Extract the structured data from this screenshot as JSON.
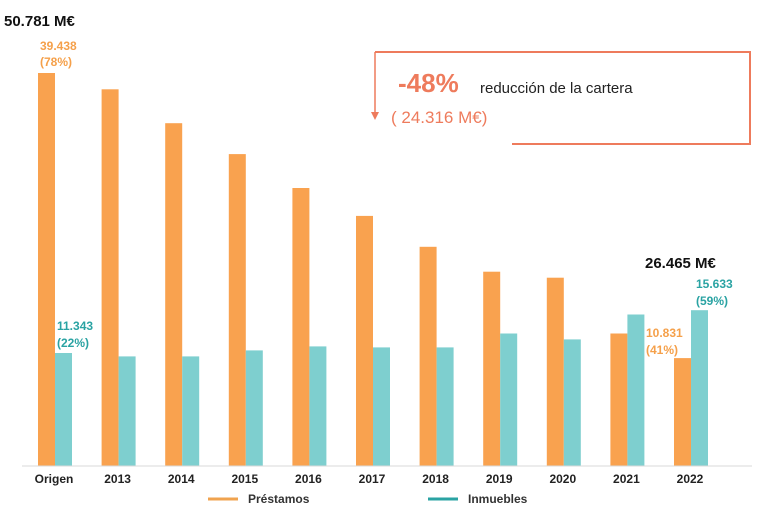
{
  "chart_data": {
    "type": "bar",
    "categories": [
      "Origen",
      "2013",
      "2014",
      "2015",
      "2016",
      "2017",
      "2018",
      "2019",
      "2020",
      "2021",
      "2022"
    ],
    "series": [
      {
        "name": "Préstamos",
        "color": "#f9a24f",
        "values": [
          39438,
          37800,
          34400,
          31300,
          27900,
          25100,
          22000,
          19500,
          18900,
          13300,
          10831
        ]
      },
      {
        "name": "Inmuebles",
        "color": "#7ecfcf",
        "values": [
          11343,
          11000,
          11000,
          11600,
          12000,
          11900,
          11900,
          13300,
          12700,
          15200,
          15633
        ]
      }
    ],
    "ylim": [
      0,
      40500
    ],
    "legend": "bottom",
    "annotations": {
      "origin_total": "50.781 M€",
      "origin_loans": "39.438",
      "origin_loans_pct": "(78%)",
      "origin_realestate": "11.343",
      "origin_realestate_pct": "(22%)",
      "final_total": "26.465 M€",
      "final_loans": "10.831",
      "final_loans_pct": "(41%)",
      "final_realestate": "15.633",
      "final_realestate_pct": "(59%)",
      "reduction_pct": "-48%",
      "reduction_text": "reducción de la cartera",
      "reduction_amount": "( 24.316 M€)"
    }
  }
}
